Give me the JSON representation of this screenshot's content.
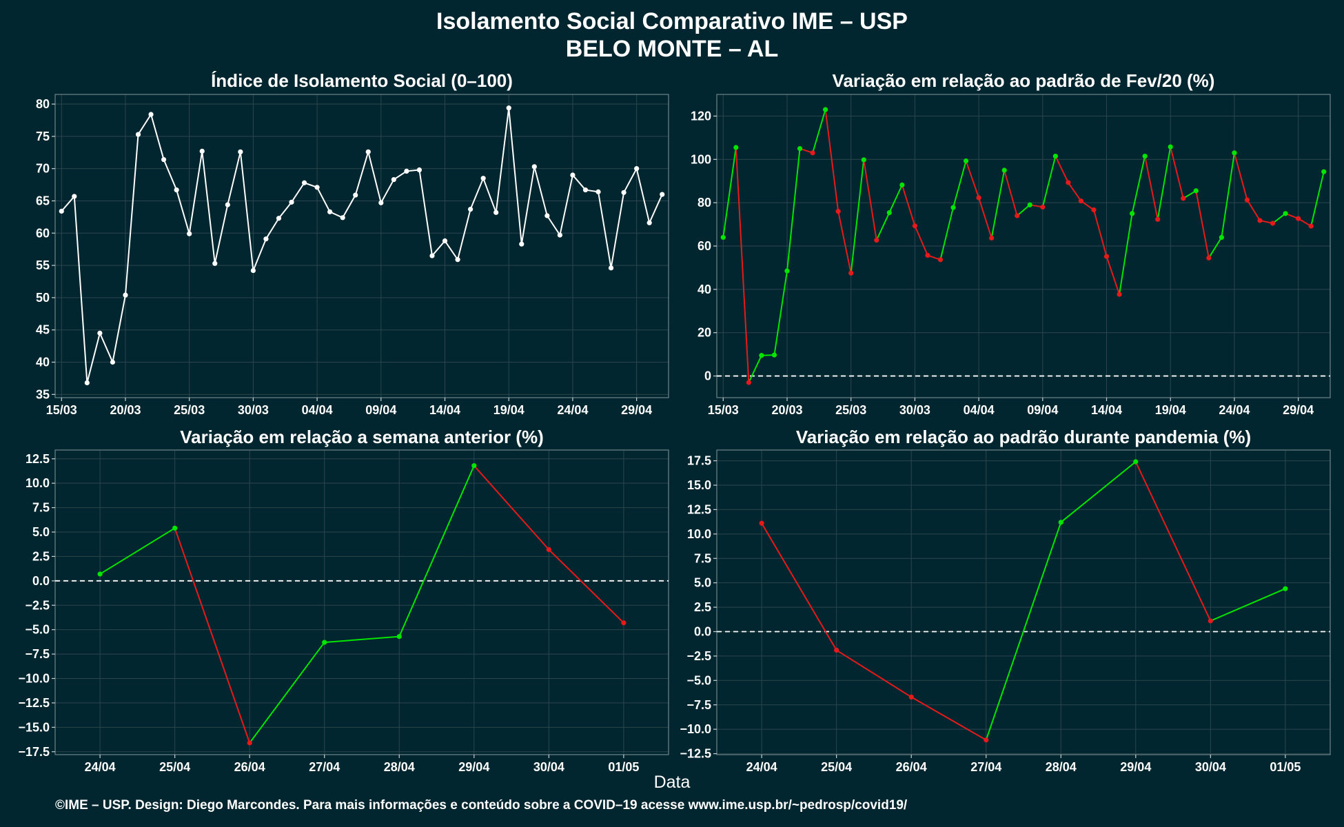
{
  "title": "Isolamento Social Comparativo IME – USP",
  "subtitle": "BELO MONTE – AL",
  "xlabel": "Data",
  "caption": "©IME – USP. Design: Diego Marcondes. Para mais informações e conteúdo sobre a COVID–19 acesse www.ime.usp.br/~pedrosp/covid19/",
  "colors": {
    "background": "#02262f",
    "grid": "#2c454d",
    "white": "#ffffff",
    "positive": "#00e600",
    "negative": "#e61a1a"
  },
  "chart_data": [
    {
      "type": "line",
      "title": "Índice de Isolamento Social (0–100)",
      "color_mode": "white",
      "baseline": null,
      "x_ticks": [
        "15/03",
        "20/03",
        "25/03",
        "30/03",
        "04/04",
        "09/04",
        "14/04",
        "19/04",
        "24/04",
        "29/04"
      ],
      "x_tick_positions": [
        0,
        5,
        10,
        15,
        20,
        25,
        30,
        35,
        40,
        45
      ],
      "x_range": [
        -0.5,
        47.5
      ],
      "ylim": [
        34.5,
        81.5
      ],
      "y_ticks": [
        35,
        40,
        45,
        50,
        55,
        60,
        65,
        70,
        75,
        80
      ],
      "y_tick_labels": [
        "35",
        "40",
        "45",
        "50",
        "55",
        "60",
        "65",
        "70",
        "75",
        "80"
      ],
      "values": [
        63.4,
        65.7,
        36.8,
        44.5,
        40.0,
        50.4,
        75.3,
        78.4,
        71.4,
        66.7,
        59.9,
        72.7,
        55.3,
        64.4,
        72.6,
        54.2,
        59.1,
        62.3,
        64.8,
        67.8,
        67.1,
        63.3,
        62.4,
        65.9,
        72.6,
        64.7,
        68.3,
        69.6,
        69.8,
        56.5,
        58.8,
        55.9,
        63.7,
        68.5,
        63.2,
        79.4,
        58.3,
        70.3,
        62.7,
        59.7,
        69.0,
        66.7,
        66.4,
        54.6,
        66.3,
        70.0,
        61.6,
        66.0
      ]
    },
    {
      "type": "line",
      "title": "Variação em relação ao padrão de Fev/20 (%)",
      "color_mode": "sign",
      "baseline": 0,
      "x_ticks": [
        "15/03",
        "20/03",
        "25/03",
        "30/03",
        "04/04",
        "09/04",
        "14/04",
        "19/04",
        "24/04",
        "29/04"
      ],
      "x_tick_positions": [
        0,
        5,
        10,
        15,
        20,
        25,
        30,
        35,
        40,
        45
      ],
      "x_range": [
        -0.5,
        47.5
      ],
      "ylim": [
        -10,
        130
      ],
      "y_ticks": [
        0,
        20,
        40,
        60,
        80,
        100,
        120
      ],
      "y_tick_labels": [
        "0",
        "20",
        "40",
        "60",
        "80",
        "100",
        "120"
      ],
      "values": [
        64.0,
        105.5,
        -3.0,
        9.5,
        9.7,
        48.5,
        105.0,
        103.0,
        123.0,
        76.0,
        47.5,
        99.8,
        62.7,
        75.4,
        88.2,
        69.3,
        55.7,
        53.7,
        77.8,
        99.3,
        82.3,
        63.7,
        95.0,
        74.0,
        79.0,
        78.0,
        101.5,
        89.3,
        80.8,
        76.7,
        55.2,
        37.7,
        75.0,
        101.5,
        72.3,
        105.8,
        82.0,
        85.5,
        54.5,
        64.0,
        103.0,
        81.3,
        71.8,
        70.5,
        75.0,
        72.7,
        69.2,
        94.3
      ]
    },
    {
      "type": "line",
      "title": "Variação em relação a semana anterior (%)",
      "color_mode": "sign",
      "baseline": 0,
      "x_ticks": [
        "24/04",
        "25/04",
        "26/04",
        "27/04",
        "28/04",
        "29/04",
        "30/04",
        "01/05"
      ],
      "x_tick_positions": [
        0,
        1,
        2,
        3,
        4,
        5,
        6,
        7
      ],
      "x_range": [
        -0.6,
        7.6
      ],
      "ylim": [
        -17.8,
        13.4
      ],
      "y_ticks": [
        -17.5,
        -15.0,
        -12.5,
        -10.0,
        -7.5,
        -5.0,
        -2.5,
        0.0,
        2.5,
        5.0,
        7.5,
        10.0,
        12.5
      ],
      "y_tick_labels": [
        "−17.5",
        "−15.0",
        "−12.5",
        "−10.0",
        "−7.5",
        "−5.0",
        "−2.5",
        "0.0",
        "2.5",
        "5.0",
        "7.5",
        "10.0",
        "12.5"
      ],
      "values": [
        0.7,
        5.4,
        -16.6,
        -6.3,
        -5.7,
        11.8,
        3.2,
        -4.3
      ]
    },
    {
      "type": "line",
      "title": "Variação em relação ao padrão durante pandemia (%)",
      "color_mode": "sign",
      "baseline": 0,
      "x_ticks": [
        "24/04",
        "25/04",
        "26/04",
        "27/04",
        "28/04",
        "29/04",
        "30/04",
        "01/05"
      ],
      "x_tick_positions": [
        0,
        1,
        2,
        3,
        4,
        5,
        6,
        7
      ],
      "x_range": [
        -0.6,
        7.6
      ],
      "ylim": [
        -12.6,
        18.6
      ],
      "y_ticks": [
        -12.5,
        -10.0,
        -7.5,
        -5.0,
        -2.5,
        0.0,
        2.5,
        5.0,
        7.5,
        10.0,
        12.5,
        15.0,
        17.5
      ],
      "y_tick_labels": [
        "−12.5",
        "−10.0",
        "−7.5",
        "−5.0",
        "−2.5",
        "0.0",
        "2.5",
        "5.0",
        "7.5",
        "10.0",
        "12.5",
        "15.0",
        "17.5"
      ],
      "values": [
        11.1,
        -1.9,
        -6.7,
        -11.1,
        11.2,
        17.4,
        1.1,
        4.4
      ]
    }
  ]
}
